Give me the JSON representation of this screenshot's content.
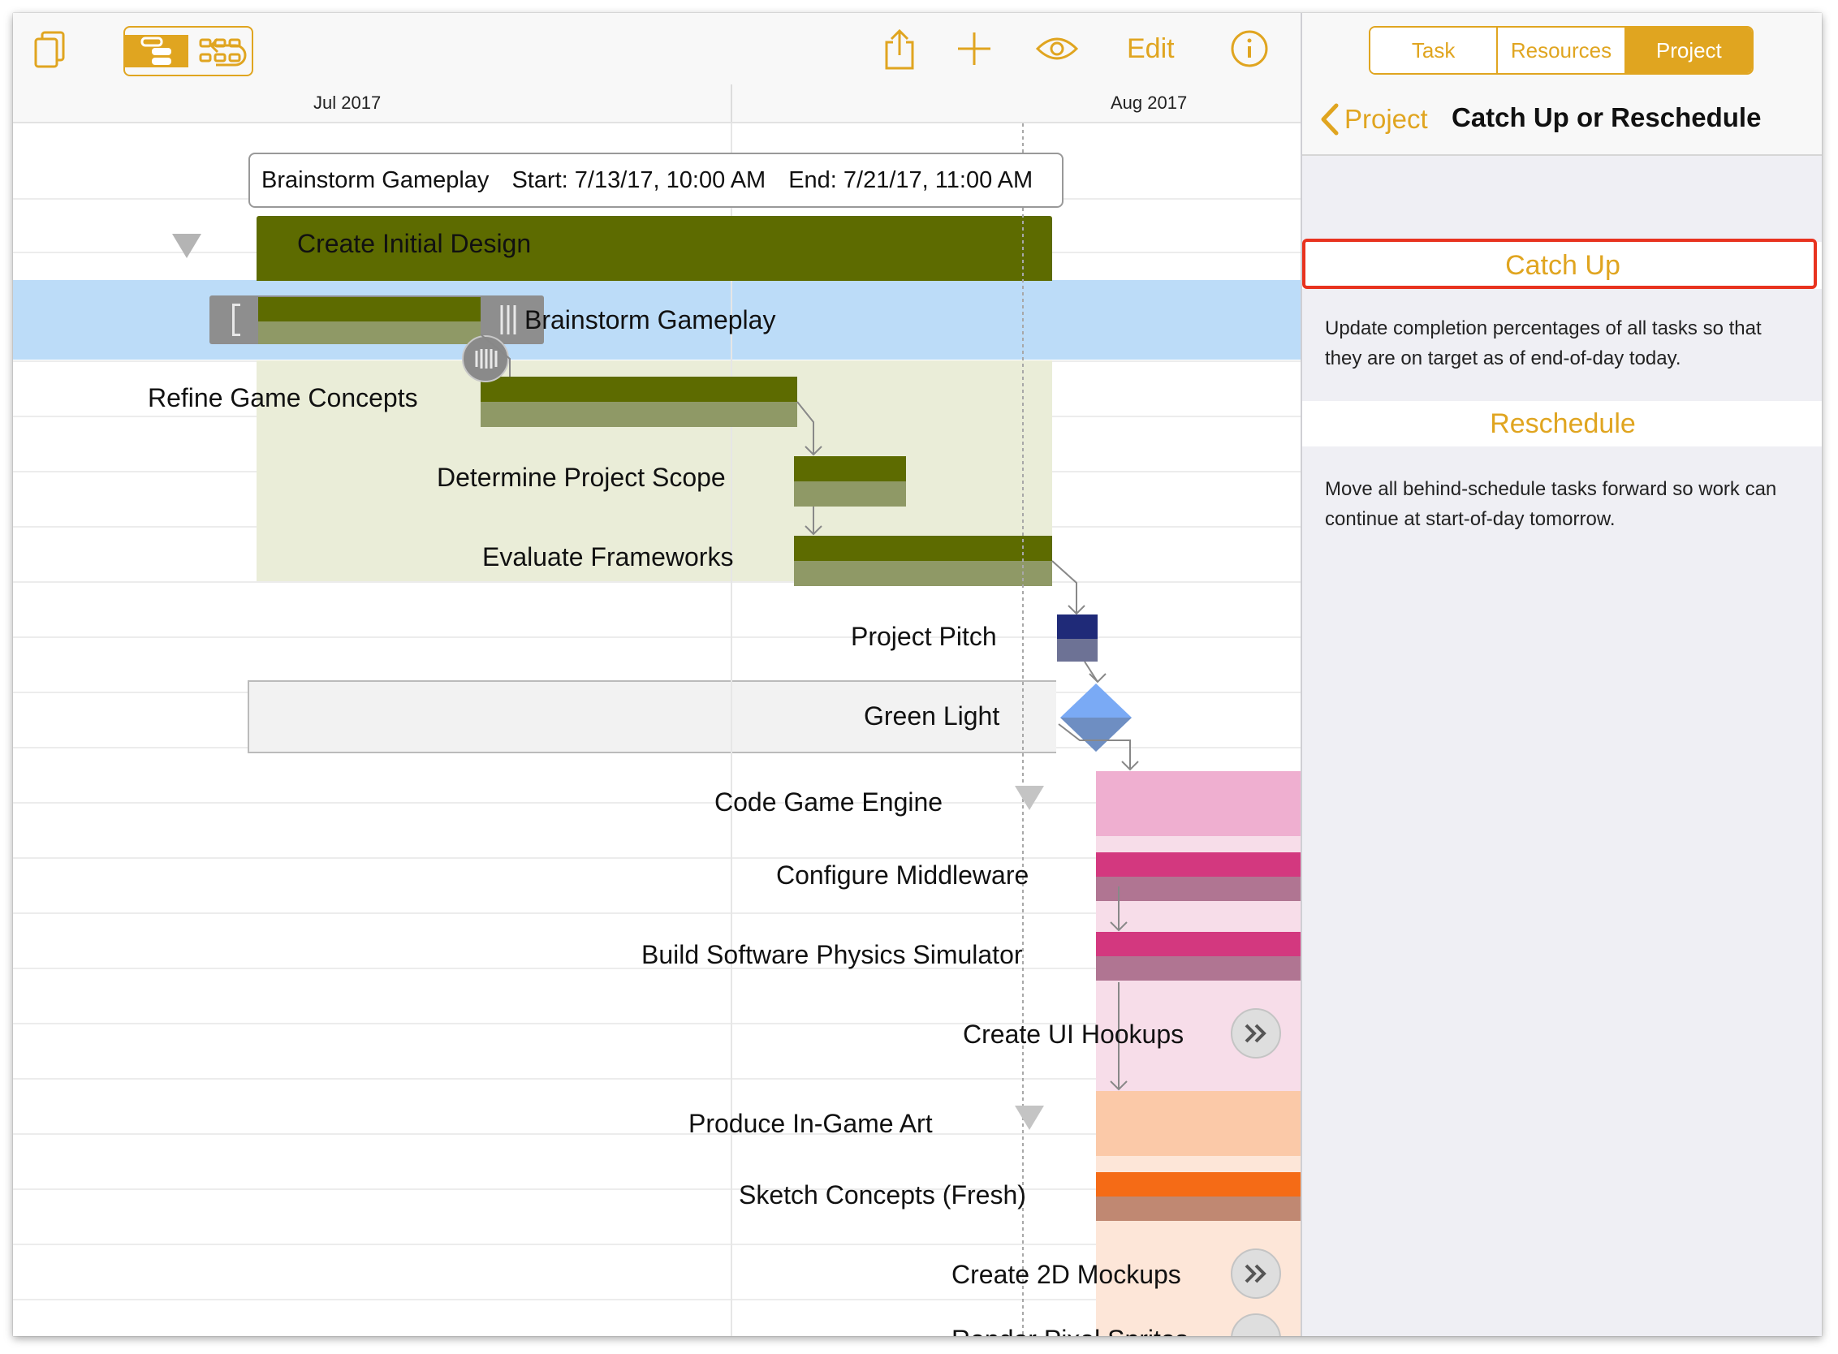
{
  "toolbar": {
    "edit_label": "Edit",
    "icons": [
      "documents-icon",
      "outline-view-icon",
      "network-view-icon",
      "undo-icon",
      "share-icon",
      "add-icon",
      "eye-icon",
      "info-icon"
    ]
  },
  "timeline": {
    "months": [
      "Jul 2017",
      "Aug 2017"
    ]
  },
  "tooltip": {
    "task": "Brainstorm Gameplay",
    "start": "Start: 7/13/17, 10:00 AM",
    "end": "End: 7/21/17, 11:00 AM"
  },
  "tasks": [
    {
      "name": "Create Initial Design",
      "kind": "group"
    },
    {
      "name": "Brainstorm Gameplay",
      "kind": "task",
      "selected": true
    },
    {
      "name": "Refine Game Concepts",
      "kind": "task"
    },
    {
      "name": "Determine Project Scope",
      "kind": "task"
    },
    {
      "name": "Evaluate Frameworks",
      "kind": "task"
    },
    {
      "name": "Project Pitch",
      "kind": "task"
    },
    {
      "name": "Green Light",
      "kind": "milestone"
    },
    {
      "name": "Code Game Engine",
      "kind": "group"
    },
    {
      "name": "Configure Middleware",
      "kind": "task"
    },
    {
      "name": "Build Software Physics Simulator",
      "kind": "task"
    },
    {
      "name": "Create UI Hookups",
      "kind": "task"
    },
    {
      "name": "Produce In-Game Art",
      "kind": "group"
    },
    {
      "name": "Sketch Concepts (Fresh)",
      "kind": "task"
    },
    {
      "name": "Create 2D Mockups",
      "kind": "task"
    },
    {
      "name": "Render Pixel Sprites",
      "kind": "task"
    }
  ],
  "colors": {
    "accent": "#e0a520",
    "design_group": "#5d6b00",
    "selection": "#bcdcf8",
    "pitch": "#1f2a78",
    "milestone": "#7aaaf5",
    "engine_group": "#efafd0",
    "engine_task": "#d3387f",
    "art_group": "#fbc9a8",
    "art_task": "#f56b16",
    "highlight": "#e8331f"
  },
  "inspector": {
    "tabs": [
      "Task",
      "Resources",
      "Project"
    ],
    "active_tab": "Project",
    "back_label": "Project",
    "title": "Catch Up or Reschedule",
    "catch_up": {
      "label": "Catch Up",
      "description": "Update completion percentages of all tasks so that they are on target as of end-of-day today."
    },
    "reschedule": {
      "label": "Reschedule",
      "description": "Move all behind-schedule tasks forward so work can continue at start-of-day tomorrow."
    }
  }
}
